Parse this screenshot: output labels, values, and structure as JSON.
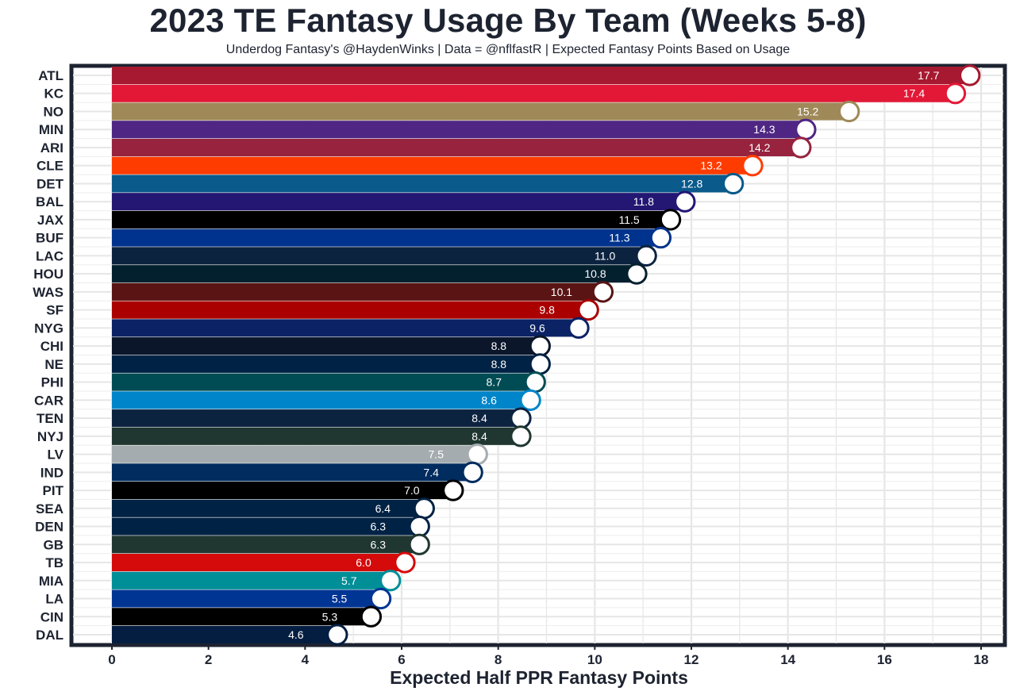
{
  "title": "2023 TE Fantasy Usage By Team (Weeks 5-8)",
  "subtitle": "Underdog Fantasy's @HaydenWinks | Data = @nflfastR | Expected Fantasy Points Based on Usage",
  "chart_data": {
    "type": "bar",
    "orientation": "horizontal",
    "title": "2023 TE Fantasy Usage By Team (Weeks 5-8)",
    "xlabel": "Expected Half PPR Fantasy Points",
    "ylabel": "",
    "xlim": [
      0,
      18
    ],
    "xticks": [
      "0",
      "2",
      "4",
      "6",
      "8",
      "10",
      "12",
      "14",
      "16",
      "18"
    ],
    "grid": true,
    "categories": [
      "ATL",
      "KC",
      "NO",
      "MIN",
      "ARI",
      "CLE",
      "DET",
      "BAL",
      "JAX",
      "BUF",
      "LAC",
      "HOU",
      "WAS",
      "SF",
      "NYG",
      "CHI",
      "NE",
      "PHI",
      "CAR",
      "TEN",
      "NYJ",
      "LV",
      "IND",
      "PIT",
      "SEA",
      "DEN",
      "GB",
      "TB",
      "MIA",
      "LA",
      "CIN",
      "DAL"
    ],
    "values": [
      17.7,
      17.4,
      15.2,
      14.3,
      14.2,
      13.2,
      12.8,
      11.8,
      11.5,
      11.3,
      11.0,
      10.8,
      10.1,
      9.8,
      9.6,
      8.8,
      8.8,
      8.7,
      8.6,
      8.4,
      8.4,
      7.5,
      7.4,
      7.0,
      6.4,
      6.3,
      6.3,
      6.0,
      5.7,
      5.5,
      5.3,
      4.6
    ],
    "value_labels": [
      "17.7",
      "17.4",
      "15.2",
      "14.3",
      "14.2",
      "13.2",
      "12.8",
      "11.8",
      "11.5",
      "11.3",
      "11.0",
      "10.8",
      "10.1",
      "9.8",
      "9.6",
      "8.8",
      "8.8",
      "8.7",
      "8.6",
      "8.4",
      "8.4",
      "7.5",
      "7.4",
      "7.0",
      "6.4",
      "6.3",
      "6.3",
      "6.0",
      "5.7",
      "5.5",
      "5.3",
      "4.6"
    ],
    "colors": [
      "#a71930",
      "#e31837",
      "#9f8958",
      "#4f2683",
      "#97233f",
      "#ff3c00",
      "#0a5a8c",
      "#241773",
      "#000000",
      "#00338d",
      "#0c2340",
      "#03202f",
      "#5a1414",
      "#aa0000",
      "#0b2265",
      "#0b162a",
      "#002244",
      "#004c54",
      "#0085ca",
      "#0c2340",
      "#203731",
      "#a5acaf",
      "#002c5f",
      "#000000",
      "#002244",
      "#002244",
      "#203731",
      "#d50a0a",
      "#008e97",
      "#003594",
      "#000000",
      "#041e42"
    ]
  }
}
